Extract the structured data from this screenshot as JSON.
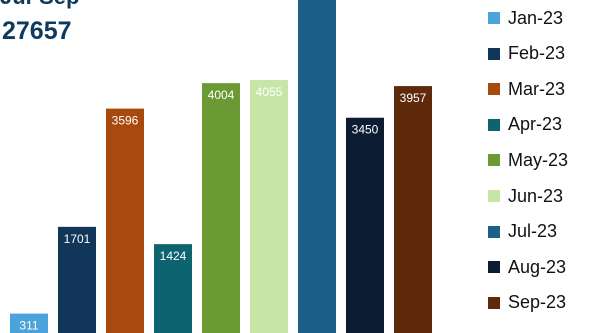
{
  "header": {
    "subtitle": "Jul-Sep",
    "total": "27657"
  },
  "chart_data": {
    "type": "bar",
    "categories": [
      "Jan-23",
      "Feb-23",
      "Mar-23",
      "Apr-23",
      "May-23",
      "Jun-23",
      "Jul-23",
      "Aug-23",
      "Sep-23"
    ],
    "values": [
      311,
      1701,
      3596,
      1424,
      4004,
      4055,
      null,
      3450,
      3957
    ],
    "labels": [
      "311",
      "1701",
      "3596",
      "1424",
      "4004",
      "4055",
      "",
      "3450",
      "3957"
    ],
    "colors": [
      "#4aa3d9",
      "#12365a",
      "#a84a0e",
      "#0d6470",
      "#6b9a35",
      "#c6e5a7",
      "#1d5f86",
      "#0c1d33",
      "#5e2a0a"
    ],
    "legend": {
      "position": "right"
    },
    "grid": false
  }
}
